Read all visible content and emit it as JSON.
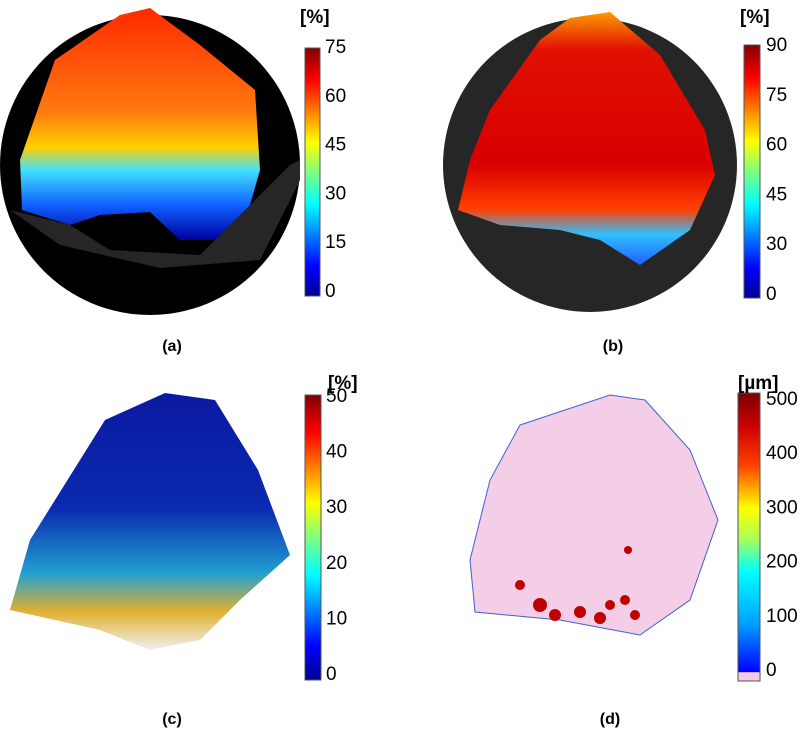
{
  "panels": [
    {
      "label": "(a)",
      "unit": "[%]",
      "colorbar_ticks": [
        "0",
        "15",
        "30",
        "45",
        "60",
        "75"
      ]
    },
    {
      "label": "(b)",
      "unit": "[%]",
      "colorbar_ticks": [
        "0",
        "30",
        "45",
        "60",
        "75",
        "90"
      ]
    },
    {
      "label": "(c)",
      "unit": "[%]",
      "colorbar_ticks": [
        "0",
        "10",
        "20",
        "30",
        "40",
        "50"
      ]
    },
    {
      "label": "(d)",
      "unit": "[µm]",
      "colorbar_ticks": [
        "0",
        "100",
        "200",
        "300",
        "400",
        "500"
      ]
    }
  ]
}
